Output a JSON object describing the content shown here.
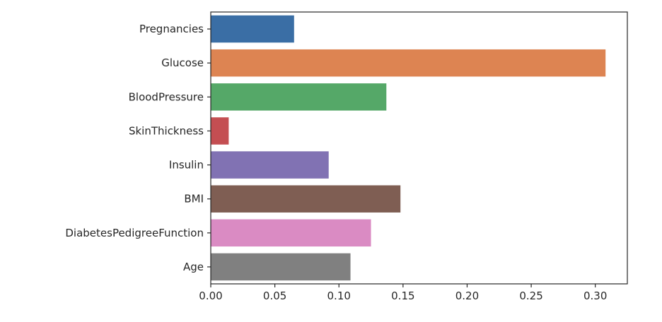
{
  "chart_data": {
    "type": "bar",
    "orientation": "horizontal",
    "categories": [
      "Pregnancies",
      "Glucose",
      "BloodPressure",
      "SkinThickness",
      "Insulin",
      "BMI",
      "DiabetesPedigreeFunction",
      "Age"
    ],
    "values": [
      0.065,
      0.308,
      0.137,
      0.014,
      0.092,
      0.148,
      0.125,
      0.109
    ],
    "colors": [
      "#3a6ea5",
      "#dd8452",
      "#55a868",
      "#c44e52",
      "#8172b3",
      "#7f5e53",
      "#da8bc3",
      "#808080"
    ],
    "xlim": [
      0,
      0.325
    ],
    "xticks": [
      0.0,
      0.05,
      0.1,
      0.15,
      0.2,
      0.25,
      0.3
    ],
    "xtick_labels": [
      "0.00",
      "0.05",
      "0.10",
      "0.15",
      "0.20",
      "0.25",
      "0.30"
    ],
    "title": "",
    "xlabel": "",
    "ylabel": "",
    "grid": false
  }
}
